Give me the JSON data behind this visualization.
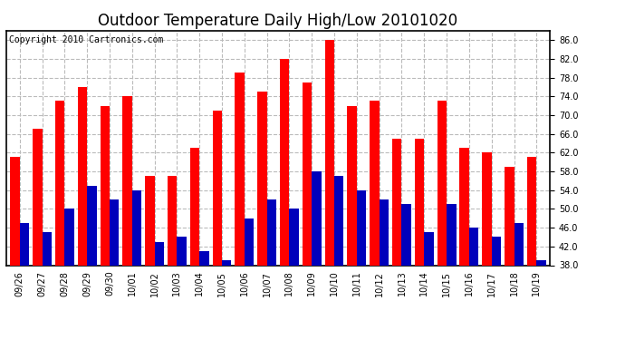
{
  "title": "Outdoor Temperature Daily High/Low 20101020",
  "copyright": "Copyright 2010 Cartronics.com",
  "dates": [
    "09/26",
    "09/27",
    "09/28",
    "09/29",
    "09/30",
    "10/01",
    "10/02",
    "10/03",
    "10/04",
    "10/05",
    "10/06",
    "10/07",
    "10/08",
    "10/09",
    "10/10",
    "10/11",
    "10/12",
    "10/13",
    "10/14",
    "10/15",
    "10/16",
    "10/17",
    "10/18",
    "10/19"
  ],
  "highs": [
    61,
    67,
    73,
    76,
    72,
    74,
    57,
    57,
    63,
    71,
    79,
    75,
    82,
    77,
    86,
    72,
    73,
    65,
    65,
    73,
    63,
    62,
    59,
    61
  ],
  "lows": [
    47,
    45,
    50,
    55,
    52,
    54,
    43,
    44,
    41,
    39,
    48,
    52,
    50,
    58,
    57,
    54,
    52,
    51,
    45,
    51,
    46,
    44,
    47,
    39
  ],
  "high_color": "#ff0000",
  "low_color": "#0000bb",
  "bg_color": "#ffffff",
  "ylim_min": 38.0,
  "ylim_max": 88.0,
  "yticks": [
    38.0,
    42.0,
    46.0,
    50.0,
    54.0,
    58.0,
    62.0,
    66.0,
    70.0,
    74.0,
    78.0,
    82.0,
    86.0
  ],
  "grid_color": "#bbbbbb",
  "title_fontsize": 12,
  "bar_width": 0.42,
  "copyright_fontsize": 7,
  "tick_fontsize": 7,
  "figwidth": 6.9,
  "figheight": 3.75
}
